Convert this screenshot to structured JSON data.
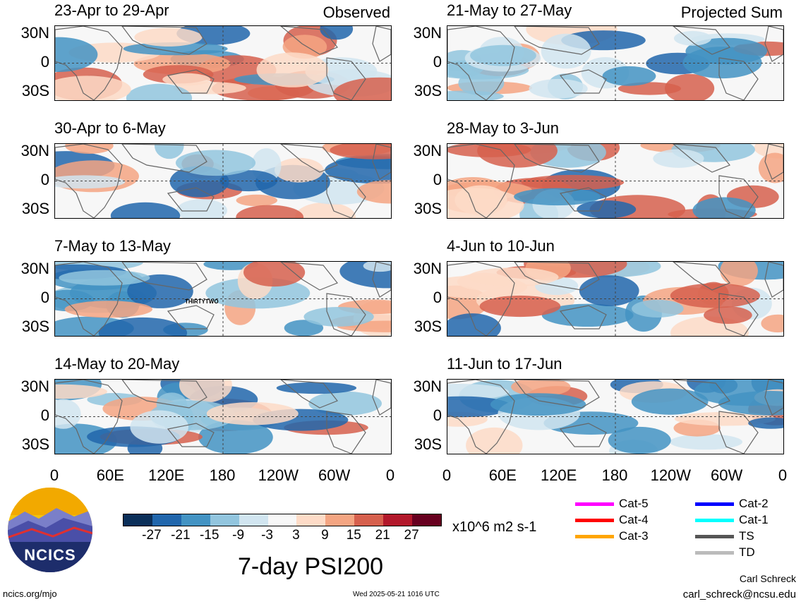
{
  "panels": [
    {
      "title": "23-Apr to 29-Apr",
      "label": "Observed"
    },
    {
      "title": "21-May to 27-May",
      "label": "Projected Sum"
    },
    {
      "title": "30-Apr to 6-May",
      "label": ""
    },
    {
      "title": "28-May to 3-Jun",
      "label": ""
    },
    {
      "title": "7-May to 13-May",
      "label": "",
      "annotation": "THIRTYTWO"
    },
    {
      "title": "4-Jun to 10-Jun",
      "label": ""
    },
    {
      "title": "14-May to 20-May",
      "label": ""
    },
    {
      "title": "11-Jun to 17-Jun",
      "label": ""
    }
  ],
  "lat_labels": [
    "30N",
    "0",
    "30S"
  ],
  "lon_labels": [
    "0",
    "60E",
    "120E",
    "180",
    "120W",
    "60W",
    "0"
  ],
  "colorbar": {
    "colors": [
      "#0b2f59",
      "#2166ac",
      "#4393c3",
      "#92c5de",
      "#d1e5f0",
      "#f7f7f7",
      "#fddbc7",
      "#f4a582",
      "#d6604d",
      "#b2182b",
      "#67001f"
    ],
    "ticks": [
      "-27",
      "-21",
      "-15",
      "-9",
      "-3",
      "3",
      "9",
      "15",
      "21",
      "27"
    ],
    "units": "x10^6 m2 s-1"
  },
  "legend": [
    {
      "label": "Cat-5",
      "color": "#ff00ff"
    },
    {
      "label": "Cat-4",
      "color": "#ff0000"
    },
    {
      "label": "Cat-3",
      "color": "#ffa500"
    },
    {
      "label": "Cat-2",
      "color": "#0000ff"
    },
    {
      "label": "Cat-1",
      "color": "#00ffff"
    },
    {
      "label": "TS",
      "color": "#555555"
    },
    {
      "label": "TD",
      "color": "#bbbbbb"
    }
  ],
  "logo_text": "NCICS",
  "main_title": "7-day PSI200",
  "footer": {
    "url": "ncics.org/mjo",
    "timestamp": "Wed 2025-05-21 1016 UTC",
    "author": "Carl Schreck",
    "email": "carl_schreck@ncsu.edu"
  }
}
